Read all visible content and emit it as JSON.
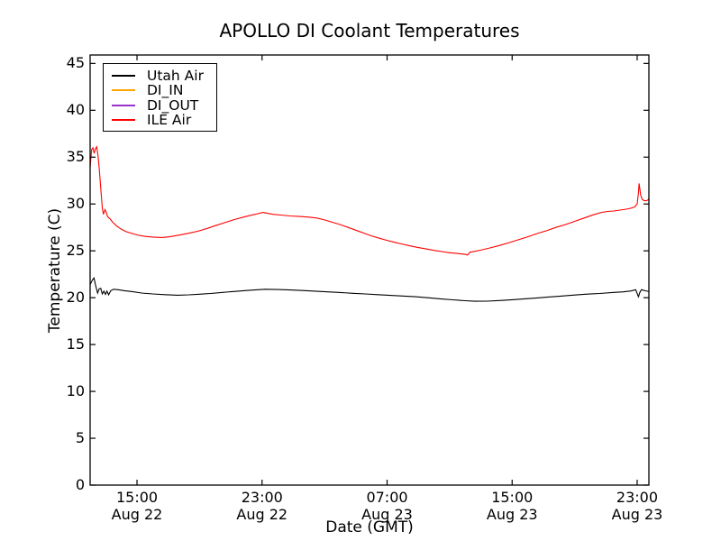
{
  "chart_data": {
    "type": "line",
    "title": "APOLLO DI Coolant Temperatures",
    "xlabel": "Date (GMT)",
    "ylabel": "Temperature (C)",
    "x_axis_note": "hours elapsed since Aug 22 12:00 GMT",
    "xlim": [
      0,
      35.75
    ],
    "ylim": [
      0,
      45.9
    ],
    "grid": false,
    "legend_position": "upper-left",
    "axis_color": "#000000",
    "background": "#ffffff",
    "xticks": [
      {
        "t": 3,
        "time": "15:00",
        "date": "Aug 22"
      },
      {
        "t": 11,
        "time": "23:00",
        "date": "Aug 22"
      },
      {
        "t": 19,
        "time": "07:00",
        "date": "Aug 23"
      },
      {
        "t": 27,
        "time": "15:00",
        "date": "Aug 23"
      },
      {
        "t": 35,
        "time": "23:00",
        "date": "Aug 23"
      }
    ],
    "yticks": [
      0,
      5,
      10,
      15,
      20,
      25,
      30,
      35,
      40,
      45
    ],
    "series": [
      {
        "name": "Utah Air",
        "color": "#000000",
        "points": [
          [
            0,
            21.4
          ],
          [
            0.15,
            21.9
          ],
          [
            0.25,
            22.1
          ],
          [
            0.35,
            21.3
          ],
          [
            0.48,
            20.5
          ],
          [
            0.58,
            20.95
          ],
          [
            0.68,
            21.0
          ],
          [
            0.78,
            20.4
          ],
          [
            0.88,
            20.7
          ],
          [
            0.98,
            20.35
          ],
          [
            1.08,
            20.7
          ],
          [
            1.18,
            20.3
          ],
          [
            1.32,
            20.75
          ],
          [
            1.5,
            20.9
          ],
          [
            1.8,
            20.85
          ],
          [
            2.2,
            20.75
          ],
          [
            2.7,
            20.65
          ],
          [
            3.3,
            20.5
          ],
          [
            4,
            20.4
          ],
          [
            4.8,
            20.32
          ],
          [
            5.6,
            20.27
          ],
          [
            6.3,
            20.3
          ],
          [
            7,
            20.37
          ],
          [
            7.7,
            20.45
          ],
          [
            8.4,
            20.55
          ],
          [
            9.1,
            20.65
          ],
          [
            9.8,
            20.75
          ],
          [
            10.5,
            20.82
          ],
          [
            11.2,
            20.9
          ],
          [
            12,
            20.87
          ],
          [
            12.8,
            20.82
          ],
          [
            13.6,
            20.77
          ],
          [
            14.4,
            20.7
          ],
          [
            15.2,
            20.62
          ],
          [
            16,
            20.55
          ],
          [
            16.8,
            20.47
          ],
          [
            17.6,
            20.4
          ],
          [
            18.4,
            20.32
          ],
          [
            19.2,
            20.25
          ],
          [
            20,
            20.18
          ],
          [
            20.8,
            20.1
          ],
          [
            21.6,
            20.0
          ],
          [
            22.4,
            19.88
          ],
          [
            23.2,
            19.77
          ],
          [
            24,
            19.68
          ],
          [
            24.6,
            19.62
          ],
          [
            25.4,
            19.63
          ],
          [
            26.2,
            19.7
          ],
          [
            27,
            19.78
          ],
          [
            27.8,
            19.88
          ],
          [
            28.6,
            19.98
          ],
          [
            29.4,
            20.08
          ],
          [
            30.2,
            20.18
          ],
          [
            31,
            20.28
          ],
          [
            31.8,
            20.38
          ],
          [
            32.6,
            20.45
          ],
          [
            33.4,
            20.55
          ],
          [
            34.1,
            20.62
          ],
          [
            34.6,
            20.72
          ],
          [
            34.9,
            20.85
          ],
          [
            35.0,
            20.45
          ],
          [
            35.08,
            20.1
          ],
          [
            35.18,
            20.6
          ],
          [
            35.28,
            20.85
          ],
          [
            35.5,
            20.75
          ],
          [
            35.75,
            20.65
          ]
        ]
      },
      {
        "name": "DI_IN",
        "color": "#ffa500",
        "points": []
      },
      {
        "name": "DI_OUT",
        "color": "#9932cc",
        "points": []
      },
      {
        "name": "ILE Air",
        "color": "#ff0000",
        "points": [
          [
            0,
            33.9
          ],
          [
            0.1,
            35.8
          ],
          [
            0.18,
            36.0
          ],
          [
            0.26,
            35.4
          ],
          [
            0.34,
            35.9
          ],
          [
            0.42,
            36.1
          ],
          [
            0.5,
            35.2
          ],
          [
            0.58,
            33.8
          ],
          [
            0.65,
            32.3
          ],
          [
            0.72,
            30.8
          ],
          [
            0.78,
            29.6
          ],
          [
            0.85,
            28.9
          ],
          [
            0.95,
            29.4
          ],
          [
            1.03,
            29.1
          ],
          [
            1.12,
            28.65
          ],
          [
            1.25,
            28.45
          ],
          [
            1.45,
            28.05
          ],
          [
            1.7,
            27.65
          ],
          [
            2,
            27.3
          ],
          [
            2.3,
            27.05
          ],
          [
            2.7,
            26.85
          ],
          [
            3.1,
            26.65
          ],
          [
            3.5,
            26.55
          ],
          [
            4,
            26.47
          ],
          [
            4.6,
            26.42
          ],
          [
            5.1,
            26.5
          ],
          [
            5.7,
            26.68
          ],
          [
            6.3,
            26.88
          ],
          [
            6.9,
            27.1
          ],
          [
            7.5,
            27.4
          ],
          [
            8,
            27.68
          ],
          [
            8.6,
            28.0
          ],
          [
            9.2,
            28.33
          ],
          [
            9.8,
            28.6
          ],
          [
            10.3,
            28.8
          ],
          [
            10.7,
            28.95
          ],
          [
            11.05,
            29.1
          ],
          [
            11.35,
            29.0
          ],
          [
            11.7,
            28.9
          ],
          [
            12.2,
            28.82
          ],
          [
            12.8,
            28.72
          ],
          [
            13.4,
            28.67
          ],
          [
            14,
            28.6
          ],
          [
            14.5,
            28.5
          ],
          [
            15,
            28.3
          ],
          [
            15.5,
            28.05
          ],
          [
            16,
            27.8
          ],
          [
            16.5,
            27.5
          ],
          [
            17,
            27.2
          ],
          [
            17.5,
            26.9
          ],
          [
            18,
            26.6
          ],
          [
            18.5,
            26.35
          ],
          [
            19,
            26.12
          ],
          [
            19.5,
            25.9
          ],
          [
            20,
            25.7
          ],
          [
            20.5,
            25.52
          ],
          [
            21,
            25.35
          ],
          [
            21.5,
            25.2
          ],
          [
            22,
            25.05
          ],
          [
            22.5,
            24.92
          ],
          [
            23,
            24.8
          ],
          [
            23.5,
            24.72
          ],
          [
            24,
            24.62
          ],
          [
            24.15,
            24.55
          ],
          [
            24.3,
            24.85
          ],
          [
            25,
            25.08
          ],
          [
            25.6,
            25.32
          ],
          [
            26.2,
            25.58
          ],
          [
            26.8,
            25.88
          ],
          [
            27.4,
            26.18
          ],
          [
            28,
            26.5
          ],
          [
            28.6,
            26.85
          ],
          [
            29.2,
            27.15
          ],
          [
            29.8,
            27.5
          ],
          [
            30.4,
            27.8
          ],
          [
            31,
            28.15
          ],
          [
            31.6,
            28.5
          ],
          [
            32.2,
            28.85
          ],
          [
            32.7,
            29.1
          ],
          [
            33.1,
            29.2
          ],
          [
            33.5,
            29.25
          ],
          [
            33.9,
            29.35
          ],
          [
            34.3,
            29.45
          ],
          [
            34.6,
            29.55
          ],
          [
            34.85,
            29.7
          ],
          [
            35.0,
            30.0
          ],
          [
            35.08,
            31.2
          ],
          [
            35.12,
            32.2
          ],
          [
            35.22,
            31.0
          ],
          [
            35.32,
            30.5
          ],
          [
            35.45,
            30.35
          ],
          [
            35.6,
            30.35
          ],
          [
            35.7,
            30.45
          ],
          [
            35.75,
            30.55
          ]
        ]
      }
    ]
  },
  "legend": {
    "items": [
      {
        "label": "Utah Air",
        "color": "#000000"
      },
      {
        "label": "DI_IN",
        "color": "#ffa500"
      },
      {
        "label": "DI_OUT",
        "color": "#9932cc"
      },
      {
        "label": "ILE Air",
        "color": "#ff0000"
      }
    ]
  }
}
